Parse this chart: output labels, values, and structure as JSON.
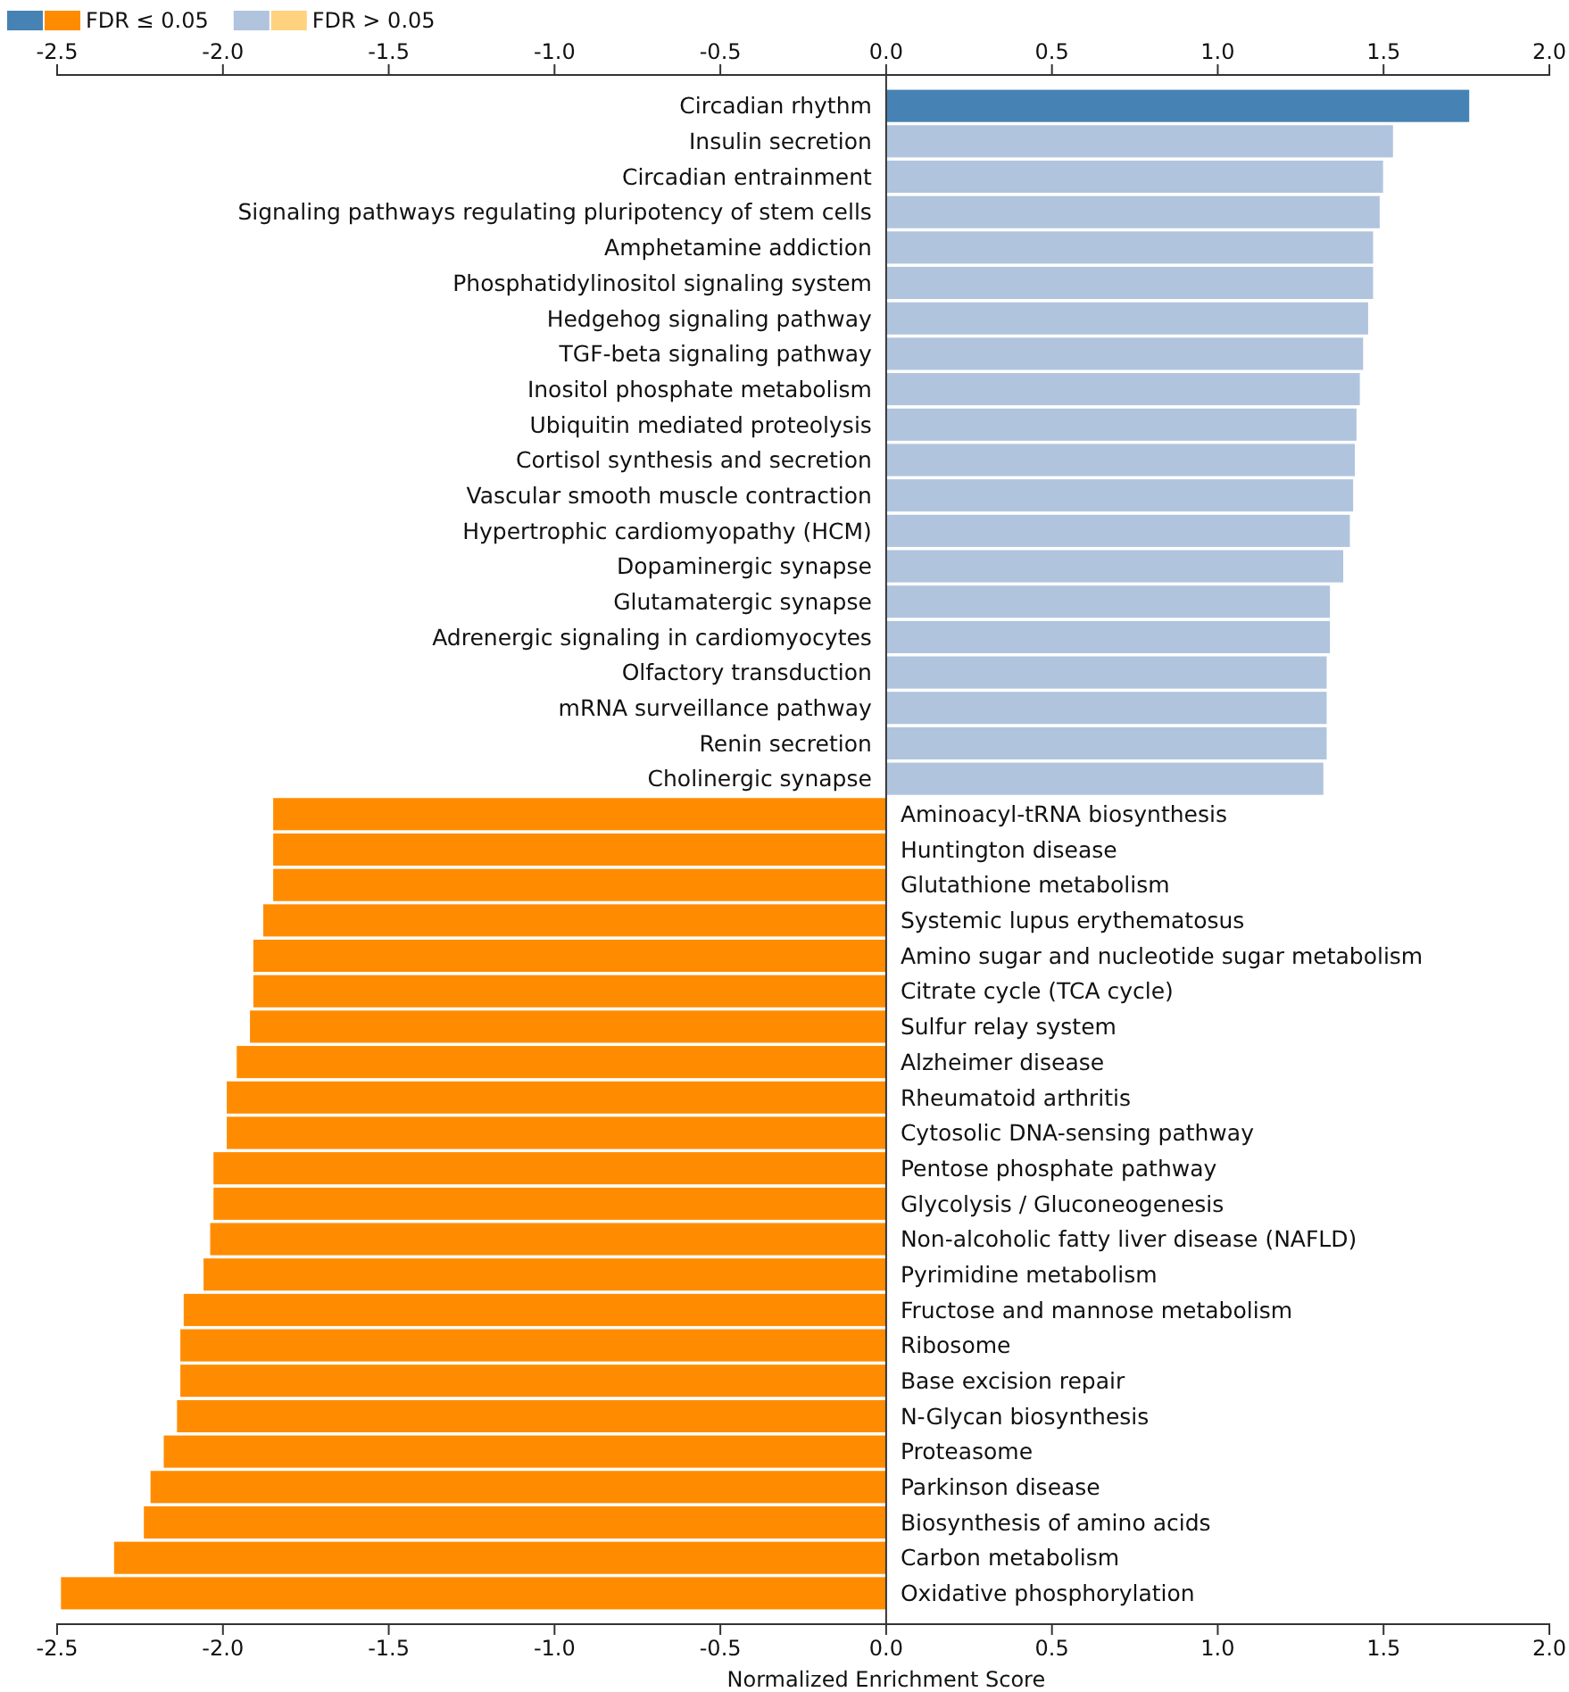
{
  "chart_data": {
    "type": "bar",
    "orientation": "horizontal",
    "xlabel": "Normalized Enrichment Score",
    "categories": [
      "Circadian rhythm",
      "Insulin secretion",
      "Circadian entrainment",
      "Signaling pathways regulating pluripotency of stem cells",
      "Amphetamine addiction",
      "Phosphatidylinositol signaling system",
      "Hedgehog signaling pathway",
      "TGF-beta signaling pathway",
      "Inositol phosphate metabolism",
      "Ubiquitin mediated proteolysis",
      "Cortisol synthesis and secretion",
      "Vascular smooth muscle contraction",
      "Hypertrophic cardiomyopathy (HCM)",
      "Dopaminergic synapse",
      "Glutamatergic synapse",
      "Adrenergic signaling in cardiomyocytes",
      "Olfactory transduction",
      "mRNA surveillance pathway",
      "Renin secretion",
      "Cholinergic synapse",
      "Aminoacyl-tRNA biosynthesis",
      "Huntington disease",
      "Glutathione metabolism",
      "Systemic lupus erythematosus",
      "Amino sugar and nucleotide sugar metabolism",
      "Citrate cycle (TCA cycle)",
      "Sulfur relay system",
      "Alzheimer disease",
      "Rheumatoid arthritis",
      "Cytosolic DNA-sensing pathway",
      "Pentose phosphate pathway",
      "Glycolysis / Gluconeogenesis",
      "Non-alcoholic fatty liver disease (NAFLD)",
      "Pyrimidine metabolism",
      "Fructose and mannose metabolism",
      "Ribosome",
      "Base excision repair",
      "N-Glycan biosynthesis",
      "Proteasome",
      "Parkinson disease",
      "Biosynthesis of amino acids",
      "Carbon metabolism",
      "Oxidative phosphorylation"
    ],
    "series": [
      {
        "name": "FDR ≤ 0.05",
        "color": "#4682b4",
        "colors": [
          "#4682b4",
          null,
          null,
          null,
          null,
          null,
          null,
          null,
          null,
          null,
          null,
          null,
          null,
          null,
          null,
          null,
          null,
          null,
          null,
          null,
          "#ff8c00",
          "#ff8c00",
          "#ff8c00",
          "#ff8c00",
          "#ff8c00",
          "#ff8c00",
          "#ff8c00",
          "#ff8c00",
          "#ff8c00",
          "#ff8c00",
          "#ff8c00",
          "#ff8c00",
          "#ff8c00",
          "#ff8c00",
          "#ff8c00",
          "#ff8c00",
          "#ff8c00",
          "#ff8c00",
          "#ff8c00",
          "#ff8c00",
          "#ff8c00",
          "#ff8c00",
          "#ff8c00"
        ],
        "values": [
          1.76,
          null,
          null,
          null,
          null,
          null,
          null,
          null,
          null,
          null,
          null,
          null,
          null,
          null,
          null,
          null,
          null,
          null,
          null,
          null,
          -1.85,
          -1.85,
          -1.85,
          -1.88,
          -1.91,
          -1.91,
          -1.92,
          -1.96,
          -1.99,
          -1.99,
          -2.03,
          -2.03,
          -2.04,
          -2.06,
          -2.12,
          -2.13,
          -2.13,
          -2.14,
          -2.18,
          -2.22,
          -2.24,
          -2.33,
          -2.49
        ]
      },
      {
        "name": "FDR > 0.05",
        "color": "#b0c4de",
        "colors": [
          null,
          "#b0c4de",
          "#b0c4de",
          "#b0c4de",
          "#b0c4de",
          "#b0c4de",
          "#b0c4de",
          "#b0c4de",
          "#b0c4de",
          "#b0c4de",
          "#b0c4de",
          "#b0c4de",
          "#b0c4de",
          "#b0c4de",
          "#b0c4de",
          "#b0c4de",
          "#b0c4de",
          "#b0c4de",
          "#b0c4de",
          "#b0c4de",
          null,
          null,
          null,
          null,
          null,
          null,
          null,
          null,
          null,
          null,
          null,
          null,
          null,
          null,
          null,
          null,
          null,
          null,
          null,
          null,
          null,
          null,
          null
        ],
        "values": [
          null,
          1.53,
          1.5,
          1.49,
          1.47,
          1.47,
          1.455,
          1.44,
          1.43,
          1.42,
          1.415,
          1.41,
          1.4,
          1.38,
          1.34,
          1.34,
          1.33,
          1.33,
          1.33,
          1.32,
          null,
          null,
          null,
          null,
          null,
          null,
          null,
          null,
          null,
          null,
          null,
          null,
          null,
          null,
          null,
          null,
          null,
          null,
          null,
          null,
          null,
          null,
          null
        ]
      }
    ],
    "xlim": [
      -2.5,
      2.0
    ],
    "xticks": [
      -2.5,
      {
        "value": -2,
        "label": "-2.0"
      },
      -1.5,
      {
        "value": -1,
        "label": "-1.0"
      },
      -0.5,
      {
        "value": 0,
        "label": "0.0"
      },
      0.5,
      {
        "value": 1,
        "label": "1.0"
      },
      1.5,
      {
        "value": 2,
        "label": "2.0"
      }
    ],
    "x2lim": [
      -2.5,
      2.0
    ],
    "x2ticks": [
      -2.5,
      {
        "value": -2,
        "label": "-2.0"
      },
      -1.5,
      {
        "value": -1,
        "label": "-1.0"
      },
      -0.5,
      {
        "value": 0,
        "label": "0.0"
      },
      0.5,
      {
        "value": 1,
        "label": "1.0"
      },
      1.5,
      {
        "value": 2,
        "label": "2.0"
      }
    ],
    "legend": "top left",
    "grid": false
  }
}
